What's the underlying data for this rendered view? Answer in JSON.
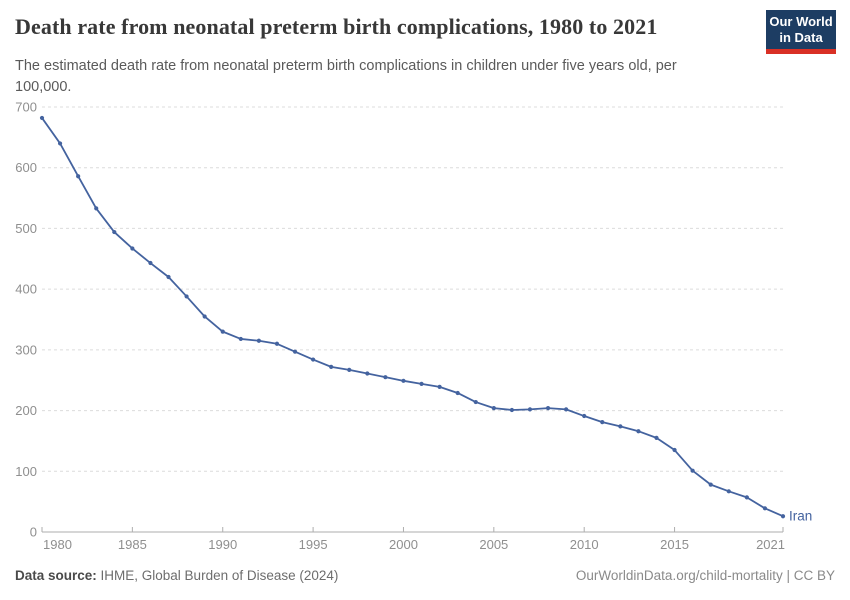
{
  "header": {
    "title": "Death rate from neonatal preterm birth complications, 1980 to 2021",
    "subtitle_line1": "The estimated death rate from neonatal preterm birth complications in children under five years old, per",
    "subtitle_line2": "100,000.",
    "logo": {
      "line1": "Our World",
      "line2": "in Data",
      "bg_color": "#1d3d63",
      "accent_color": "#d93025"
    }
  },
  "footer": {
    "datasource_label": "Data source:",
    "datasource_value": " IHME, Global Burden of Disease (2024)",
    "credit": "OurWorldinData.org/child-mortality | CC BY"
  },
  "chart_data": {
    "type": "line",
    "title": "Death rate from neonatal preterm birth complications, 1980 to 2021",
    "xlabel": "",
    "ylabel": "",
    "xlim": [
      1980,
      2021
    ],
    "ylim": [
      0,
      700
    ],
    "grid": "horizontal dashed",
    "legend_position": "end-of-line label",
    "grid_color": "#dcdcdc",
    "axis_color": "#aeaeae",
    "tick_label_color": "#8f8f8f",
    "y_ticks": [
      0,
      100,
      200,
      300,
      400,
      500,
      600,
      700
    ],
    "x_ticks": [
      {
        "year": 1980,
        "label": "1980"
      },
      {
        "year": 1985,
        "label": "1985"
      },
      {
        "year": 1990,
        "label": "1990"
      },
      {
        "year": 1995,
        "label": "1995"
      },
      {
        "year": 2000,
        "label": "2000"
      },
      {
        "year": 2005,
        "label": "2005"
      },
      {
        "year": 2010,
        "label": "2010"
      },
      {
        "year": 2015,
        "label": "2015"
      },
      {
        "year": 2021,
        "label": "2021"
      }
    ],
    "series": [
      {
        "name": "Iran",
        "color": "#44639f",
        "x": [
          1980,
          1981,
          1982,
          1983,
          1984,
          1985,
          1986,
          1987,
          1988,
          1989,
          1990,
          1991,
          1992,
          1993,
          1994,
          1995,
          1996,
          1997,
          1998,
          1999,
          2000,
          2001,
          2002,
          2003,
          2004,
          2005,
          2006,
          2007,
          2008,
          2009,
          2010,
          2011,
          2012,
          2013,
          2014,
          2015,
          2016,
          2017,
          2018,
          2019,
          2020,
          2021
        ],
        "values": [
          682,
          640,
          586,
          533,
          494,
          467,
          443,
          420,
          388,
          355,
          330,
          318,
          315,
          310,
          297,
          284,
          272,
          267,
          261,
          255,
          249,
          244,
          239,
          229,
          214,
          204,
          201,
          202,
          204,
          202,
          191,
          181,
          174,
          166,
          155,
          135,
          101,
          78,
          67,
          57,
          39,
          26
        ]
      }
    ]
  }
}
